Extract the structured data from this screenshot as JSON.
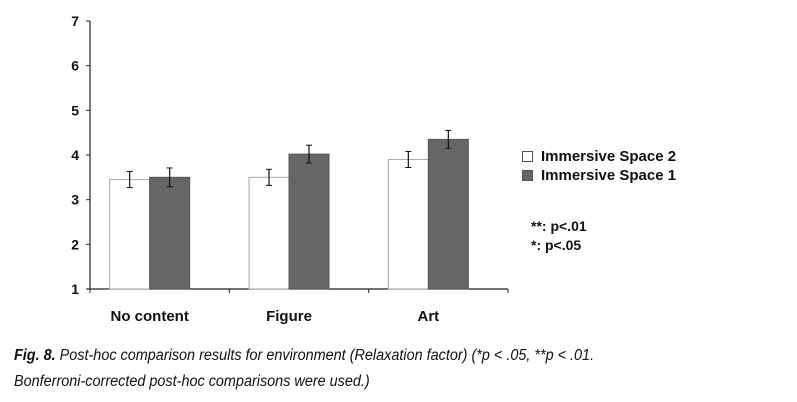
{
  "chart_data": {
    "type": "bar",
    "categories": [
      "No content",
      "Figure",
      "Art"
    ],
    "series": [
      {
        "name": "Immersive Space 2",
        "values": [
          3.45,
          3.5,
          3.9
        ],
        "errors": [
          0.18,
          0.18,
          0.18
        ],
        "color": "#ffffff"
      },
      {
        "name": "Immersive Space 1",
        "values": [
          3.5,
          4.02,
          4.35
        ],
        "errors": [
          0.21,
          0.2,
          0.2
        ],
        "color": "#666666"
      }
    ],
    "ylim": [
      1,
      7
    ],
    "yticks": [
      "1",
      "2",
      "3",
      "4",
      "5",
      "6",
      "7"
    ],
    "xlabel": "",
    "ylabel": "",
    "title": "",
    "legend": "right",
    "annotations": [
      "**: p<.01",
      "*: p<.05"
    ]
  },
  "caption": {
    "label": "Fig. 8.",
    "line1": " Post-hoc comparison results for environment (Relaxation factor) (*p < .05, **p < .01.",
    "line2": "Bonferroni-corrected post-hoc comparisons were used.)"
  }
}
